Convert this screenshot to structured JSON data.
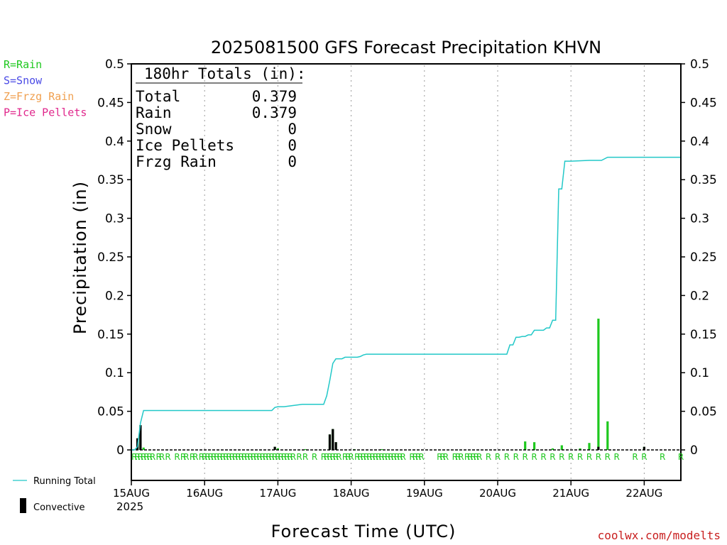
{
  "ptype_legend": [
    {
      "text": "R=Rain",
      "color": "#1ec81e"
    },
    {
      "text": "S=Snow",
      "color": "#4a4ae6"
    },
    {
      "text": "Z=Frzg Rain",
      "color": "#f0a050"
    },
    {
      "text": "P=Ice Pellets",
      "color": "#e0288c"
    }
  ],
  "totals": {
    "header": "180hr Totals (in):",
    "rows": [
      {
        "label": "Total",
        "value": "0.379"
      },
      {
        "label": "Rain",
        "value": "0.379"
      },
      {
        "label": "Snow",
        "value": "0"
      },
      {
        "label": "Ice Pellets",
        "value": "0"
      },
      {
        "label": "Frzg Rain",
        "value": "0"
      }
    ]
  },
  "series_legend": {
    "running_total": "Running Total",
    "convective": "Convective"
  },
  "credit": "coolwx.com/modelts",
  "colors": {
    "total_line": "#22c8c8",
    "rain_bar": "#1ec81e",
    "convective_bar": "#000000",
    "credit": "#c81e1e",
    "grid": "#999999"
  },
  "chart_data": {
    "type": "bar",
    "title": "2025081500 GFS Forecast Precipitation KHVN",
    "xlabel": "Forecast Time (UTC)",
    "ylabel": "Precipitation (in)",
    "ylim": [
      0,
      0.5
    ],
    "y_ticks": [
      "0",
      "0.05",
      "0.1",
      "0.15",
      "0.2",
      "0.25",
      "0.3",
      "0.35",
      "0.4",
      "0.45",
      "0.5"
    ],
    "x_range_hours": [
      0,
      180
    ],
    "x_ticks": [
      {
        "hour": 0,
        "label": "15AUG"
      },
      {
        "hour": 24,
        "label": "16AUG"
      },
      {
        "hour": 48,
        "label": "17AUG"
      },
      {
        "hour": 72,
        "label": "18AUG"
      },
      {
        "hour": 96,
        "label": "19AUG"
      },
      {
        "hour": 120,
        "label": "20AUG"
      },
      {
        "hour": 144,
        "label": "21AUG"
      },
      {
        "hour": 168,
        "label": "22AUG"
      }
    ],
    "year_label": "2025",
    "grid": "vertical dotted at day boundaries",
    "running_total": [
      [
        0,
        0
      ],
      [
        1,
        0
      ],
      [
        2,
        0.004
      ],
      [
        3,
        0.035
      ],
      [
        4,
        0.051
      ],
      [
        6,
        0.051
      ],
      [
        12,
        0.051
      ],
      [
        24,
        0.051
      ],
      [
        36,
        0.051
      ],
      [
        45,
        0.051
      ],
      [
        46,
        0.051
      ],
      [
        47,
        0.055
      ],
      [
        48,
        0.056
      ],
      [
        50,
        0.056
      ],
      [
        52,
        0.057
      ],
      [
        54,
        0.058
      ],
      [
        56,
        0.059
      ],
      [
        58,
        0.059
      ],
      [
        60,
        0.059
      ],
      [
        63,
        0.059
      ],
      [
        64,
        0.07
      ],
      [
        65,
        0.09
      ],
      [
        66,
        0.112
      ],
      [
        67,
        0.118
      ],
      [
        69,
        0.118
      ],
      [
        70,
        0.12
      ],
      [
        72,
        0.12
      ],
      [
        74,
        0.12
      ],
      [
        75,
        0.121
      ],
      [
        76,
        0.123
      ],
      [
        77,
        0.124
      ],
      [
        78,
        0.124
      ],
      [
        90,
        0.124
      ],
      [
        108,
        0.124
      ],
      [
        120,
        0.124
      ],
      [
        123,
        0.124
      ],
      [
        124,
        0.136
      ],
      [
        125,
        0.136
      ],
      [
        126,
        0.146
      ],
      [
        127,
        0.146
      ],
      [
        128,
        0.147
      ],
      [
        129,
        0.147
      ],
      [
        130,
        0.149
      ],
      [
        131,
        0.149
      ],
      [
        132,
        0.155
      ],
      [
        135,
        0.155
      ],
      [
        136,
        0.158
      ],
      [
        137,
        0.158
      ],
      [
        138,
        0.168
      ],
      [
        139,
        0.168
      ],
      [
        140,
        0.338
      ],
      [
        141,
        0.338
      ],
      [
        142,
        0.374
      ],
      [
        144,
        0.374
      ],
      [
        150,
        0.375
      ],
      [
        154,
        0.375
      ],
      [
        156,
        0.379
      ],
      [
        180,
        0.379
      ]
    ],
    "rain_bars": [
      {
        "hour": 2,
        "value": 0.015
      },
      {
        "hour": 3,
        "value": 0.032
      },
      {
        "hour": 4,
        "value": 0.003
      },
      {
        "hour": 47,
        "value": 0.004
      },
      {
        "hour": 48,
        "value": 0.002
      },
      {
        "hour": 57,
        "value": 0.001
      },
      {
        "hour": 65,
        "value": 0.02
      },
      {
        "hour": 66,
        "value": 0.027
      },
      {
        "hour": 67,
        "value": 0.01
      },
      {
        "hour": 73,
        "value": 0.001
      },
      {
        "hour": 82,
        "value": 0.001
      },
      {
        "hour": 129,
        "value": 0.011
      },
      {
        "hour": 132,
        "value": 0.01
      },
      {
        "hour": 138,
        "value": 0.002
      },
      {
        "hour": 141,
        "value": 0.006
      },
      {
        "hour": 147,
        "value": 0.002
      },
      {
        "hour": 150,
        "value": 0.009
      },
      {
        "hour": 153,
        "value": 0.17
      },
      {
        "hour": 156,
        "value": 0.037
      },
      {
        "hour": 168,
        "value": 0.004
      }
    ],
    "convective_bars": [
      {
        "hour": 2,
        "value": 0.015
      },
      {
        "hour": 3,
        "value": 0.032
      },
      {
        "hour": 47,
        "value": 0.004
      },
      {
        "hour": 65,
        "value": 0.02
      },
      {
        "hour": 66,
        "value": 0.027
      },
      {
        "hour": 67,
        "value": 0.01
      },
      {
        "hour": 153,
        "value": 0.004
      },
      {
        "hour": 168,
        "value": 0.004
      }
    ],
    "ptype_hours": [
      1,
      2,
      3,
      4,
      5,
      6,
      7,
      9,
      10,
      12,
      15,
      17,
      18,
      20,
      21,
      23,
      24,
      25,
      26,
      27,
      28,
      29,
      30,
      31,
      32,
      33,
      34,
      35,
      36,
      37,
      38,
      39,
      40,
      41,
      42,
      43,
      44,
      45,
      46,
      47,
      48,
      49,
      50,
      51,
      52,
      53,
      55,
      57,
      60,
      63,
      64,
      65,
      66,
      67,
      68,
      70,
      71,
      72,
      74,
      75,
      76,
      77,
      78,
      79,
      80,
      81,
      82,
      83,
      84,
      85,
      86,
      87,
      88,
      89,
      92,
      93,
      94,
      95,
      101,
      102,
      103,
      106,
      107,
      108,
      110,
      111,
      112,
      113,
      114,
      117,
      120,
      123,
      126,
      129,
      132,
      135,
      138,
      141,
      144,
      147,
      150,
      153,
      156,
      159,
      165,
      168,
      174,
      180
    ],
    "ptype_symbol": "R"
  }
}
